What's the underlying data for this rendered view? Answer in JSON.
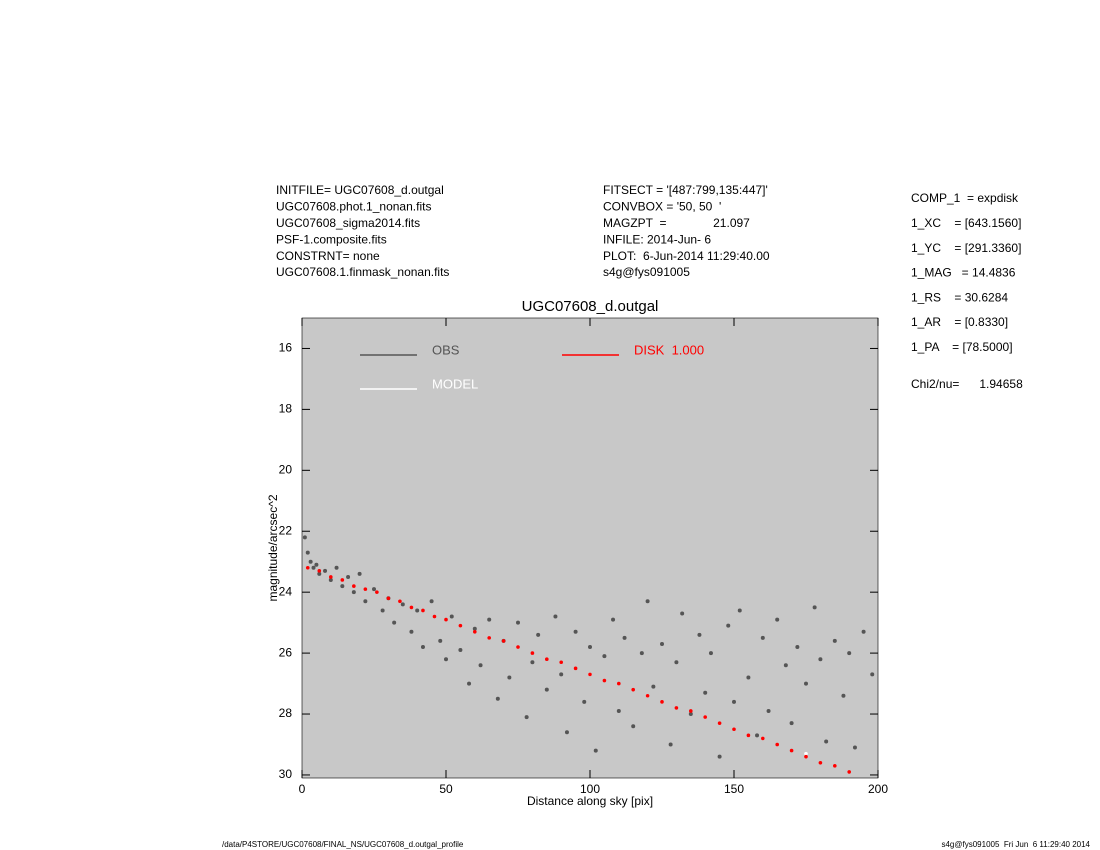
{
  "chart_data": {
    "type": "scatter",
    "title": "UGC07608_d.outgal",
    "x_label": "Distance along sky [pix]",
    "y_label": "magnitude/arcsec^2",
    "xlim": [
      0,
      200
    ],
    "xticks": [
      0,
      50,
      100,
      150,
      200
    ],
    "ylim": [
      15,
      30.1
    ],
    "y_inverted": true,
    "yticks": [
      16,
      18,
      20,
      22,
      24,
      26,
      28,
      30
    ],
    "background": "#c8c8c8",
    "series": [
      {
        "name": "OBS",
        "color": "#555555",
        "x": [
          1,
          2,
          3,
          4,
          5,
          6,
          8,
          10,
          12,
          14,
          16,
          18,
          20,
          22,
          25,
          28,
          30,
          32,
          35,
          38,
          40,
          42,
          45,
          48,
          50,
          52,
          55,
          58,
          60,
          62,
          65,
          68,
          70,
          72,
          75,
          78,
          80,
          82,
          85,
          88,
          90,
          92,
          95,
          98,
          100,
          102,
          105,
          108,
          110,
          112,
          115,
          118,
          120,
          122,
          125,
          128,
          130,
          132,
          135,
          138,
          140,
          142,
          145,
          148,
          150,
          152,
          155,
          158,
          160,
          162,
          165,
          168,
          170,
          172,
          175,
          178,
          180,
          182,
          185,
          188,
          190,
          192,
          195,
          198
        ],
        "values": [
          22.2,
          22.7,
          23.0,
          23.2,
          23.1,
          23.4,
          23.3,
          23.6,
          23.2,
          23.8,
          23.5,
          24.0,
          23.4,
          24.3,
          23.9,
          24.6,
          24.2,
          25.0,
          24.4,
          25.3,
          24.6,
          25.8,
          24.3,
          25.6,
          26.2,
          24.8,
          25.9,
          27.0,
          25.2,
          26.4,
          24.9,
          27.5,
          25.6,
          26.8,
          25.0,
          28.1,
          26.3,
          25.4,
          27.2,
          24.8,
          26.7,
          28.6,
          25.3,
          27.6,
          25.8,
          29.2,
          26.1,
          24.9,
          27.9,
          25.5,
          28.4,
          26.0,
          24.3,
          27.1,
          25.7,
          29.0,
          26.3,
          24.7,
          28.0,
          25.4,
          27.3,
          26.0,
          29.4,
          25.1,
          27.6,
          24.6,
          26.8,
          28.7,
          25.5,
          27.9,
          24.9,
          26.4,
          28.3,
          25.8,
          27.0,
          24.5,
          26.2,
          28.9,
          25.6,
          27.4,
          26.0,
          29.1,
          25.3,
          26.7
        ]
      },
      {
        "name": "MODEL",
        "color": "#ffffff",
        "x": [
          100,
          120,
          140,
          160,
          175,
          185
        ],
        "values": [
          26.7,
          27.4,
          28.1,
          28.8,
          29.3,
          29.7
        ]
      },
      {
        "name": "DISK  1.000",
        "color": "#ff0000",
        "x": [
          2,
          6,
          10,
          14,
          18,
          22,
          26,
          30,
          34,
          38,
          42,
          46,
          50,
          55,
          60,
          65,
          70,
          75,
          80,
          85,
          90,
          95,
          100,
          105,
          110,
          115,
          120,
          125,
          130,
          135,
          140,
          145,
          150,
          155,
          160,
          165,
          170,
          175,
          180,
          185,
          190
        ],
        "values": [
          23.2,
          23.3,
          23.5,
          23.6,
          23.8,
          23.9,
          24.0,
          24.2,
          24.3,
          24.5,
          24.6,
          24.8,
          24.9,
          25.1,
          25.3,
          25.5,
          25.6,
          25.8,
          26.0,
          26.2,
          26.3,
          26.5,
          26.7,
          26.9,
          27.0,
          27.2,
          27.4,
          27.6,
          27.8,
          27.9,
          28.1,
          28.3,
          28.5,
          28.7,
          28.8,
          29.0,
          29.2,
          29.4,
          29.6,
          29.7,
          29.9
        ]
      }
    ],
    "header_left": [
      "INITFILE= UGC07608_d.outgal",
      "UGC07608.phot.1_nonan.fits",
      "UGC07608_sigma2014.fits",
      "PSF-1.composite.fits",
      "CONSTRNT= none",
      "UGC07608.1.finmask_nonan.fits"
    ],
    "header_middle": [
      "FITSECT = '[487:799,135:447]'",
      "CONVBOX = '50, 50  '",
      "MAGZPT  =              21.097",
      "INFILE: 2014-Jun- 6",
      "PLOT:  6-Jun-2014 11:29:40.00",
      "s4g@fys091005"
    ],
    "header_right": [
      "COMP_1  = expdisk",
      "1_XC    = [643.1560]",
      "1_YC    = [291.3360]",
      "1_MAG   = 14.4836",
      "1_RS    = 30.6284",
      "1_AR    = [0.8330]",
      "1_PA    = [78.5000]"
    ],
    "chi2": "Chi2/nu=      1.94658",
    "footer_left": "/data/P4STORE/UGC07608/FINAL_NS/UGC07608_d.outgal_profile",
    "footer_right": "s4g@fys091005  Fri Jun  6 11:29:40 2014"
  }
}
